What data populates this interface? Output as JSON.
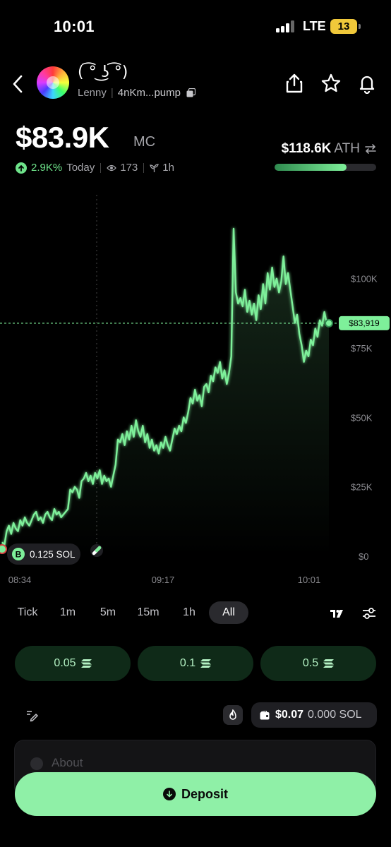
{
  "status_bar": {
    "time": "10:01",
    "network": "LTE",
    "battery": "13"
  },
  "token": {
    "name": "( ͡° ͜ʖ ͡°)",
    "symbol": "Lenny",
    "address": "4nKm...pump"
  },
  "market": {
    "mc_value": "$83.9K",
    "mc_label": "MC",
    "change_pct": "2.9K%",
    "change_period": "Today",
    "holders": "173",
    "age": "1h",
    "ath_value": "$118.6K",
    "ath_label": "ATH",
    "ath_progress": 0.71
  },
  "chart_data": {
    "type": "line",
    "x_ticks": [
      "08:34",
      "09:17",
      "10:01"
    ],
    "y_ticks": [
      "$100K",
      "$75K",
      "$50K",
      "$25K",
      "$0"
    ],
    "ylim": [
      0,
      120000
    ],
    "current_price_label": "$83,919",
    "current_value": 83919,
    "marker_label": "0.125 SOL",
    "marker_badge": "B",
    "series": [
      {
        "values": [
          5000,
          4000,
          9000,
          11000,
          8000,
          12000,
          10000,
          9000,
          13000,
          11000,
          14000,
          12000,
          11000,
          13000,
          15000,
          16000,
          13000,
          14000,
          12000,
          15000,
          16000,
          14000,
          13000,
          17000,
          15000,
          16000,
          14000,
          15000,
          16000,
          17000,
          24000,
          23000,
          25000,
          24000,
          21000,
          27000,
          28000,
          30000,
          27000,
          29000,
          26000,
          30000,
          28000,
          31000,
          26000,
          29000,
          27000,
          28000,
          25000,
          29000,
          33000,
          42000,
          41000,
          44000,
          40000,
          45000,
          42000,
          47000,
          43000,
          49000,
          45000,
          43000,
          47000,
          41000,
          44000,
          39000,
          42000,
          38000,
          40000,
          37000,
          41000,
          39000,
          43000,
          40000,
          38000,
          42000,
          46000,
          44000,
          47000,
          45000,
          50000,
          48000,
          52000,
          57000,
          55000,
          60000,
          56000,
          58000,
          54000,
          61000,
          62000,
          59000,
          65000,
          63000,
          68000,
          66000,
          70000,
          64000,
          67000,
          62000,
          66000,
          72000,
          118000,
          95000,
          91000,
          93000,
          90000,
          96000,
          88000,
          92000,
          87000,
          91000,
          85000,
          94000,
          89000,
          98000,
          91000,
          102000,
          96000,
          104000,
          97000,
          100000,
          95000,
          99000,
          108000,
          98000,
          102000,
          96000,
          90000,
          84000,
          87000,
          80000,
          76000,
          70000,
          74000,
          72000,
          78000,
          76000,
          82000,
          79000,
          85000,
          83000,
          88000,
          84000,
          83919
        ]
      }
    ]
  },
  "timeframes": [
    "Tick",
    "1m",
    "5m",
    "15m",
    "1h",
    "All"
  ],
  "active_timeframe": "All",
  "quick_buy": [
    "0.05",
    "0.1",
    "0.5"
  ],
  "wallet": {
    "usd": "$0.07",
    "sol": "0.000 SOL"
  },
  "about_label": "About",
  "deposit_label": "Deposit",
  "colors": {
    "accent": "#8ff0a7",
    "positive": "#6ee38a",
    "line": "#7ef09a"
  }
}
